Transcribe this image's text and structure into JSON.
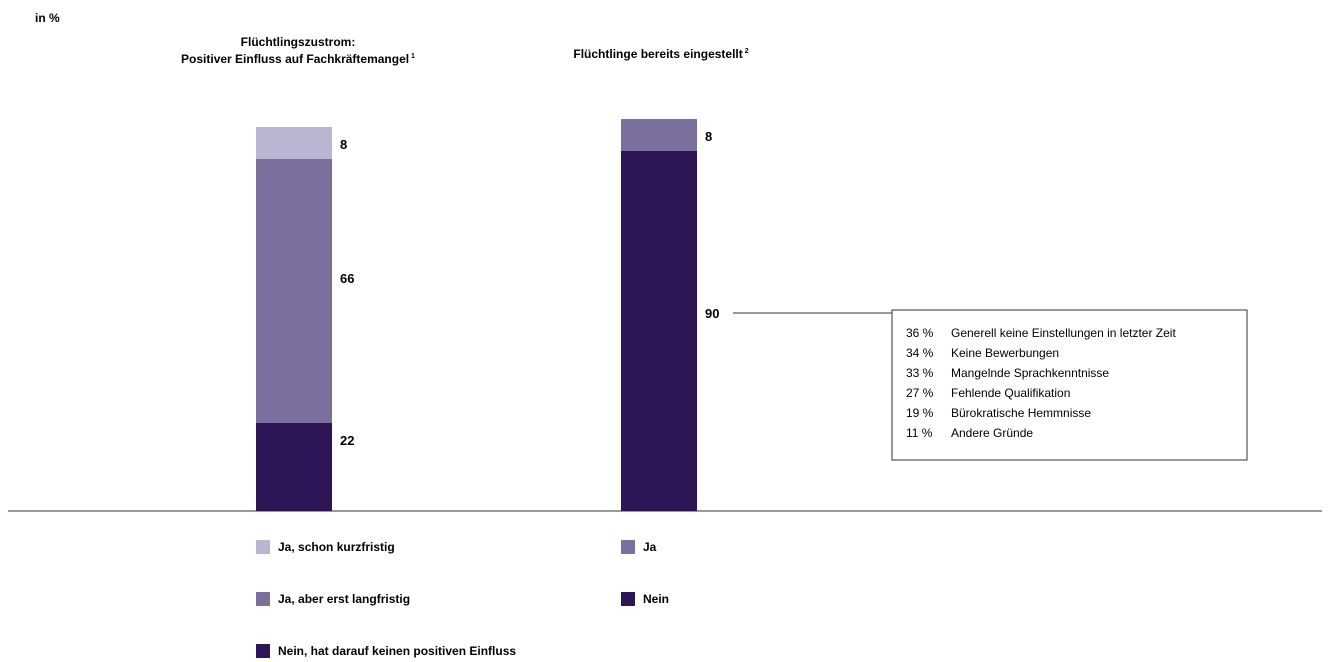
{
  "unit_label": "in %",
  "colors": {
    "ja_kurzfristig": "#bbb5d2",
    "ja_langfristig": "#7b6f9e",
    "nein": "#2e1656",
    "ja": "#7b6f9e"
  },
  "chart_data": [
    {
      "type": "bar",
      "stacked": true,
      "title_lines": [
        "Flüchtlingszustrom:",
        "Positiver Einfluss auf Fachkräftemangel"
      ],
      "footnote": "1",
      "ylim": [
        0,
        100
      ],
      "series": [
        {
          "name": "Nein, hat darauf keinen positiven Einfluss",
          "value": 22,
          "color_key": "nein"
        },
        {
          "name": "Ja, aber erst langfristig",
          "value": 66,
          "color_key": "ja_langfristig"
        },
        {
          "name": "Ja, schon kurzfristig",
          "value": 8,
          "color_key": "ja_kurzfristig"
        }
      ]
    },
    {
      "type": "bar",
      "stacked": true,
      "title_lines": [
        "Flüchtlinge bereits eingestellt"
      ],
      "footnote": "2",
      "ylim": [
        0,
        100
      ],
      "series": [
        {
          "name": "Nein",
          "value": 90,
          "color_key": "nein"
        },
        {
          "name": "Ja",
          "value": 8,
          "color_key": "ja"
        }
      ],
      "annotation": {
        "attached_to": "Nein",
        "items": [
          {
            "pct": "36 %",
            "text": "Generell keine Einstellungen in letzter Zeit"
          },
          {
            "pct": "34 %",
            "text": "Keine Bewerbungen"
          },
          {
            "pct": "33 %",
            "text": "Mangelnde Sprachkenntnisse"
          },
          {
            "pct": "27 %",
            "text": "Fehlende Qualifikation"
          },
          {
            "pct": "19 %",
            "text": "Bürokratische Hemmnisse"
          },
          {
            "pct": "11 %",
            "text": "Andere Gründe"
          }
        ]
      }
    }
  ]
}
